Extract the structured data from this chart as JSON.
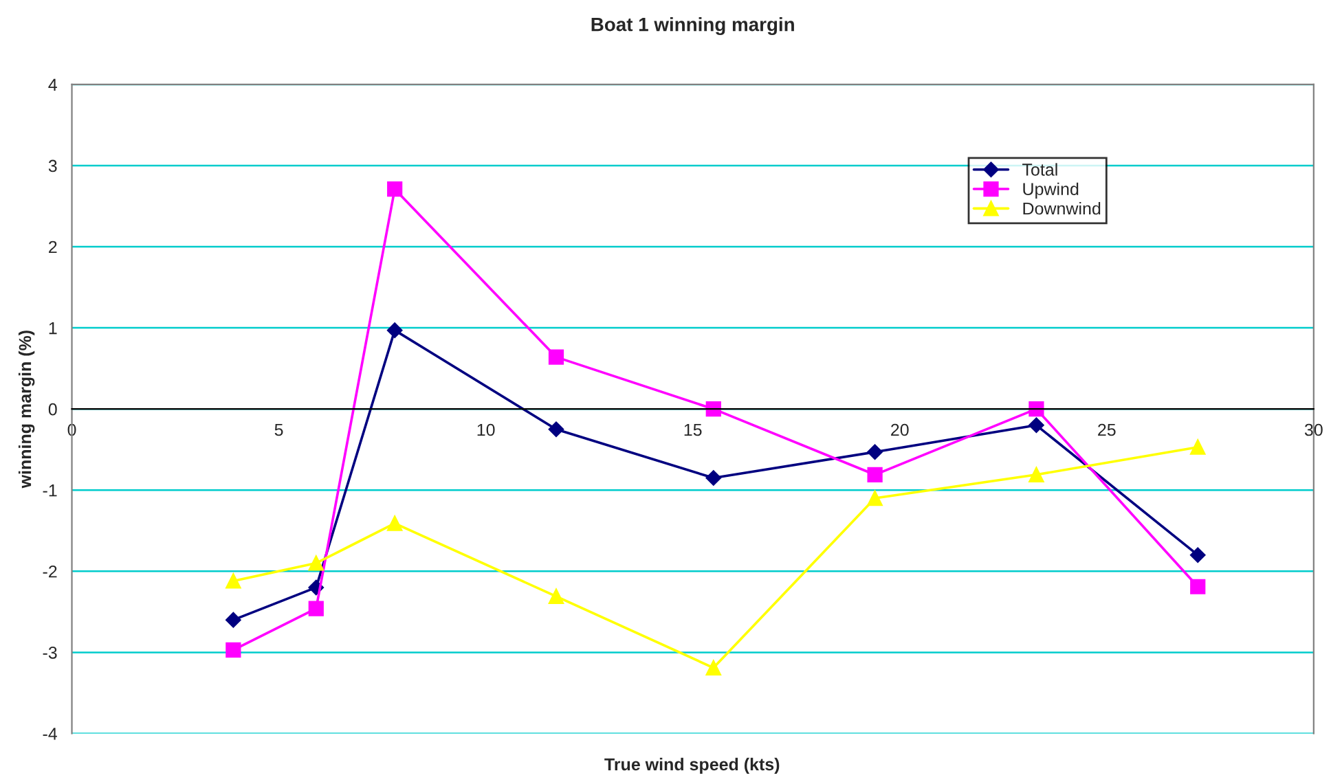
{
  "chart_data": {
    "type": "line",
    "title": "Boat 1 winning margin",
    "xlabel": "True wind speed (kts)",
    "ylabel": "winning margin (%)",
    "x": [
      3.9,
      5.9,
      7.8,
      11.7,
      15.5,
      19.4,
      23.3,
      27.2
    ],
    "series": [
      {
        "name": "Total",
        "color": "#000080",
        "marker": "diamond",
        "values": [
          -2.6,
          -2.2,
          0.97,
          -0.25,
          -0.85,
          -0.53,
          -0.2,
          -1.8
        ]
      },
      {
        "name": "Upwind",
        "color": "#ff00ff",
        "marker": "square",
        "values": [
          -2.97,
          -2.46,
          2.71,
          0.64,
          0.0,
          -0.81,
          0.0,
          -2.19
        ]
      },
      {
        "name": "Downwind",
        "color": "#ffff00",
        "marker": "triangle",
        "values": [
          -2.12,
          -1.9,
          -1.41,
          -2.31,
          -3.19,
          -1.1,
          -0.81,
          -0.47
        ]
      }
    ],
    "xlim": [
      0,
      30
    ],
    "xticks": [
      0,
      5,
      10,
      15,
      20,
      25,
      30
    ],
    "ylim": [
      -4,
      4
    ],
    "yticks": [
      -4,
      -3,
      -2,
      -1,
      0,
      1,
      2,
      3,
      4
    ],
    "grid": "y",
    "legend": "top right",
    "line_style": "solid"
  }
}
